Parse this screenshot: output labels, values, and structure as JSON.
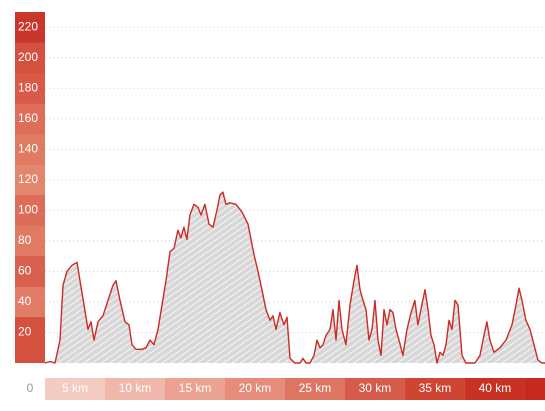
{
  "chart_data": {
    "type": "area",
    "series": [
      {
        "color": "#cc2a26",
        "x": [
          0,
          0.42,
          0.83,
          1.25,
          1.5,
          1.83,
          2.25,
          2.67,
          2.92,
          3.25,
          3.58,
          3.83,
          4.08,
          4.42,
          4.83,
          5.25,
          5.67,
          5.92,
          6.25,
          6.67,
          7,
          7.25,
          7.58,
          8.08,
          8.42,
          8.75,
          9.08,
          9.42,
          9.75,
          10.08,
          10.42,
          10.75,
          11.08,
          11.33,
          11.58,
          11.83,
          12.08,
          12.42,
          12.75,
          13,
          13.33,
          13.67,
          14,
          14.33,
          14.58,
          14.83,
          15.08,
          15.42,
          15.92,
          16.42,
          16.92,
          17.42,
          17.75,
          18.08,
          18.42,
          18.75,
          19,
          19.25,
          19.58,
          19.92,
          20.17,
          20.42,
          20.83,
          21.25,
          21.5,
          21.75,
          22.08,
          22.42,
          22.67,
          22.92,
          23.17,
          23.42,
          23.75,
          24,
          24.25,
          24.5,
          24.75,
          25.08,
          25.42,
          25.75,
          26,
          26.25,
          26.5,
          26.75,
          27,
          27.25,
          27.5,
          27.75,
          28,
          28.25,
          28.5,
          28.75,
          29,
          29.25,
          29.5,
          29.83,
          30.17,
          30.5,
          30.83,
          31.08,
          31.33,
          31.67,
          31.92,
          32.17,
          32.42,
          32.67,
          32.92,
          33.17,
          33.42,
          33.67,
          33.92,
          34.17,
          34.42,
          34.75,
          35.08,
          35.42,
          35.83,
          36.25,
          36.58,
          36.83,
          37.08,
          37.42,
          37.92,
          38.42,
          38.92,
          39.25,
          39.5,
          39.75,
          40.08,
          40.42,
          40.75,
          41.08,
          41.42,
          41.67
        ],
        "values": [
          0,
          1,
          0,
          15,
          51,
          60,
          64,
          66,
          54,
          38,
          22,
          27,
          15,
          27,
          31,
          41,
          51,
          54,
          41,
          27,
          25,
          12,
          9,
          9,
          10,
          15,
          12,
          22,
          38,
          54,
          73,
          75,
          87,
          82,
          89,
          81,
          97,
          104,
          102,
          97,
          104,
          91,
          89,
          100,
          110,
          112,
          104,
          105,
          104,
          99,
          91,
          71,
          60,
          48,
          35,
          28,
          31,
          22,
          33,
          25,
          30,
          3,
          0,
          0,
          3,
          0,
          0,
          5,
          15,
          10,
          12,
          18,
          22,
          35,
          15,
          41,
          22,
          12,
          38,
          54,
          64,
          48,
          41,
          35,
          15,
          22,
          41,
          15,
          5,
          35,
          25,
          35,
          33,
          22,
          15,
          5,
          22,
          33,
          41,
          25,
          35,
          48,
          35,
          18,
          12,
          0,
          7,
          5,
          12,
          28,
          22,
          41,
          38,
          5,
          0,
          0,
          0,
          5,
          18,
          27,
          15,
          7,
          10,
          15,
          25,
          38,
          49,
          41,
          28,
          22,
          12,
          2,
          0,
          0
        ]
      }
    ],
    "xlim": [
      0,
      41.67
    ],
    "xticks": [
      0,
      {
        "value": 5,
        "label": "5 km"
      },
      {
        "value": 10,
        "label": "10 km"
      },
      {
        "value": 15,
        "label": "15 km"
      },
      {
        "value": 20,
        "label": "20 km"
      },
      {
        "value": 25,
        "label": "25 km"
      },
      {
        "value": 30,
        "label": "30 km"
      },
      {
        "value": 35,
        "label": "35 km"
      },
      {
        "value": 40,
        "label": "40 km"
      }
    ],
    "ylim": [
      0,
      230
    ],
    "yticks": [
      20,
      40,
      60,
      80,
      100,
      120,
      140,
      160,
      180,
      200,
      220
    ],
    "grid": true
  }
}
